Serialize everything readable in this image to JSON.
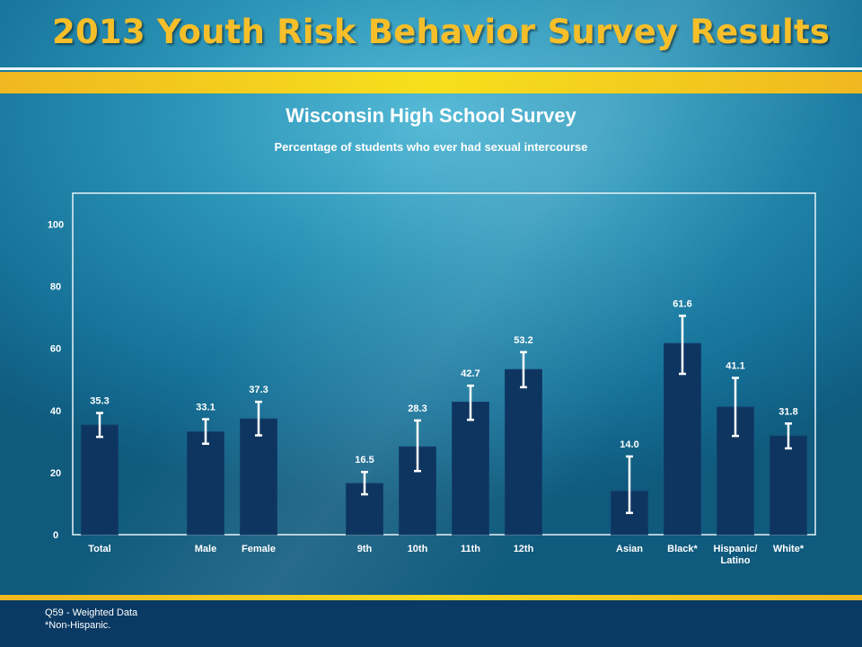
{
  "header": {
    "title": "2013 Youth Risk Behavior Survey Results"
  },
  "colors": {
    "title_gold": "#f6bf2a",
    "band_gold": "#f6e01c",
    "bar": "#0d3560",
    "footer": "#0a3a63"
  },
  "chart_data": {
    "type": "bar",
    "title": "Wisconsin High School Survey",
    "subtitle": "Percentage of students who ever had sexual intercourse",
    "xlabel": "",
    "ylabel": "",
    "ylim": [
      0,
      110
    ],
    "yticks": [
      0,
      20,
      40,
      60,
      80,
      100
    ],
    "grid": false,
    "legend": "none",
    "groups": [
      [
        "Total"
      ],
      [
        "Male",
        "Female"
      ],
      [
        "9th",
        "10th",
        "11th",
        "12th"
      ],
      [
        "Asian",
        "Black*",
        "Hispanic/ Latino",
        "White*"
      ]
    ],
    "categories": [
      "Total",
      "Male",
      "Female",
      "9th",
      "10th",
      "11th",
      "12th",
      "Asian",
      "Black*",
      "Hispanic/ Latino",
      "White*"
    ],
    "values": [
      35.3,
      33.1,
      37.3,
      16.5,
      28.3,
      42.7,
      53.2,
      14.0,
      61.6,
      41.1,
      31.8
    ],
    "value_labels": [
      "35.3",
      "33.1",
      "37.3",
      "16.5",
      "28.3",
      "42.7",
      "53.2",
      "14.0",
      "61.6",
      "41.1",
      "31.8"
    ],
    "ci_low": [
      31.5,
      29.3,
      32.0,
      13.0,
      20.5,
      37.0,
      47.5,
      7.0,
      51.8,
      31.8,
      27.8
    ],
    "ci_high": [
      39.2,
      37.2,
      42.8,
      20.2,
      36.8,
      48.0,
      58.8,
      25.2,
      70.5,
      50.5,
      35.8
    ]
  },
  "footer": {
    "note1": "Q59 - Weighted Data",
    "note2": "*Non-Hispanic."
  }
}
